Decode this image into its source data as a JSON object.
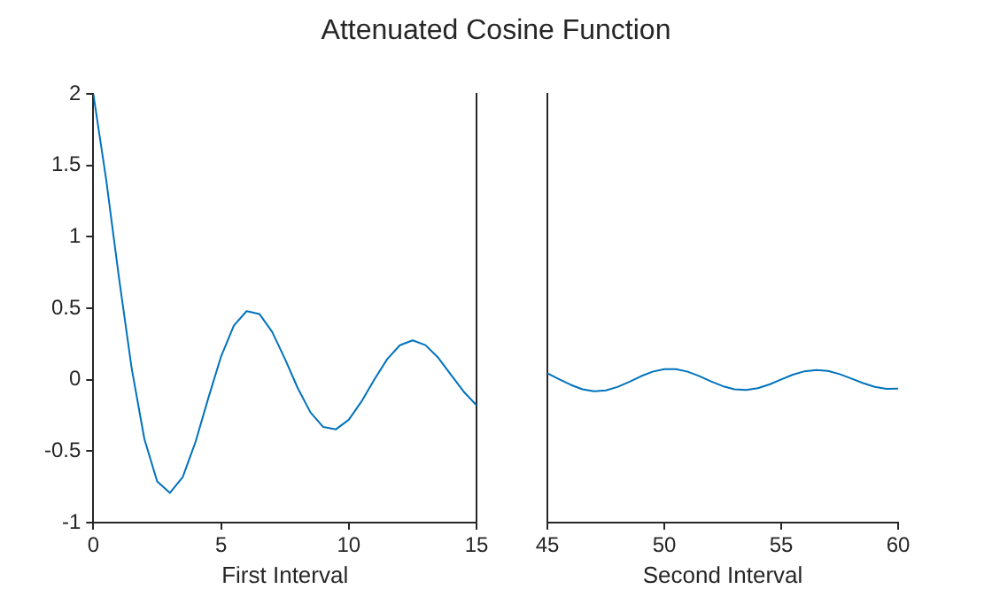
{
  "chart_data": [
    {
      "type": "line",
      "title": "Attenuated Cosine Function",
      "xlabel": "First Interval",
      "xlim": [
        0,
        15
      ],
      "xticks": [
        0,
        5,
        10,
        15
      ],
      "ylim": [
        -1,
        2
      ],
      "yticks": [
        -1,
        -0.5,
        0,
        0.5,
        1,
        1.5,
        2
      ],
      "grid": false,
      "legend": false,
      "marker": "none",
      "line_style": "solid",
      "series": [
        {
          "color": "#0072bd",
          "x": [
            0,
            0.5,
            1,
            1.5,
            2,
            2.5,
            3,
            3.5,
            4,
            4.5,
            5,
            5.5,
            6,
            6.5,
            7,
            7.5,
            8,
            8.5,
            9,
            9.5,
            10,
            10.5,
            11,
            11.5,
            12,
            12.5,
            13,
            13.5,
            14,
            14.5,
            15
          ],
          "values": [
            2,
            1.404,
            0.72,
            0.081,
            -0.416,
            -0.712,
            -0.792,
            -0.681,
            -0.436,
            -0.13,
            0.162,
            0.378,
            0.48,
            0.46,
            0.335,
            0.146,
            -0.058,
            -0.229,
            -0.331,
            -0.347,
            -0.28,
            -0.152,
            0.001,
            0.143,
            0.241,
            0.275,
            0.242,
            0.154,
            0.034,
            -0.084,
            -0.179
          ]
        }
      ]
    },
    {
      "type": "line",
      "xlabel": "Second Interval",
      "xlim": [
        45,
        60
      ],
      "xticks": [
        45,
        50,
        55,
        60
      ],
      "ylim": [
        -1,
        2
      ],
      "yticks": [
        -1,
        -0.5,
        0,
        0.5,
        1,
        1.5,
        2
      ],
      "tick_labels": "x",
      "grid": false,
      "legend": false,
      "marker": "none",
      "line_style": "solid",
      "series": [
        {
          "color": "#0072bd",
          "x": [
            45,
            45.5,
            46,
            46.5,
            47,
            47.5,
            48,
            48.5,
            49,
            49.5,
            50,
            50.5,
            51,
            51.5,
            52,
            52.5,
            53,
            53.5,
            54,
            54.5,
            55,
            55.5,
            56,
            56.5,
            57,
            57.5,
            58,
            58.5,
            59,
            59.5,
            60
          ],
          "values": [
            0.045,
            0.004,
            -0.036,
            -0.067,
            -0.081,
            -0.075,
            -0.051,
            -0.015,
            0.024,
            0.056,
            0.074,
            0.074,
            0.056,
            0.025,
            -0.012,
            -0.045,
            -0.067,
            -0.072,
            -0.059,
            -0.033,
            0.002,
            0.035,
            0.059,
            0.068,
            0.061,
            0.039,
            0.008,
            -0.024,
            -0.05,
            -0.064,
            -0.062
          ]
        }
      ]
    }
  ]
}
